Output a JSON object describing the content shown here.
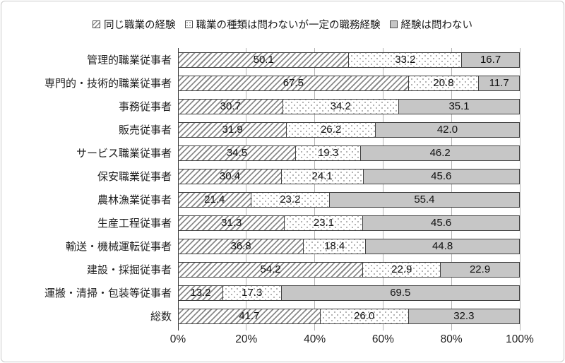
{
  "legend": {
    "items": [
      {
        "label": "同じ職業の経験",
        "pattern": "hatch"
      },
      {
        "label": "職業の種類は問わないが一定の職務経験",
        "pattern": "dots"
      },
      {
        "label": "経験は問わない",
        "pattern": "solid"
      }
    ]
  },
  "chart_data": {
    "type": "bar",
    "orientation": "horizontal",
    "stacked": true,
    "unit": "%",
    "xlim": [
      0,
      100
    ],
    "x_ticks": [
      "0%",
      "20%",
      "40%",
      "60%",
      "80%",
      "100%"
    ],
    "grid": "vertical",
    "legend_position": "top",
    "categories": [
      "管理的職業従事者",
      "専門的・技術的職業従事者",
      "事務従事者",
      "販売従事者",
      "サービス職業従事者",
      "保安職業従事者",
      "農林漁業従事者",
      "生産工程従事者",
      "輸送・機械運転従事者",
      "建設・採掘従事者",
      "運搬・清掃・包装等従事者",
      "総数"
    ],
    "series": [
      {
        "name": "同じ職業の経験",
        "pattern": "hatch",
        "values": [
          50.1,
          67.5,
          30.7,
          31.9,
          34.5,
          30.4,
          21.4,
          31.3,
          36.8,
          54.2,
          13.2,
          41.7
        ]
      },
      {
        "name": "職業の種類は問わないが一定の職務経験",
        "pattern": "dots",
        "values": [
          33.2,
          20.8,
          34.2,
          26.2,
          19.3,
          24.1,
          23.2,
          23.1,
          18.4,
          22.9,
          17.3,
          26.0
        ]
      },
      {
        "name": "経験は問わない",
        "pattern": "solid",
        "values": [
          16.7,
          11.7,
          35.1,
          42.0,
          46.2,
          45.6,
          55.4,
          45.6,
          44.8,
          22.9,
          69.5,
          32.3
        ]
      }
    ],
    "colors": {
      "hatch_line": "#8a8a8a",
      "dot": "#adadad",
      "solid_fill": "#c6c6c6",
      "segment_border": "#404040",
      "gridline": "#b3b3b3",
      "axis_line": "#333333",
      "frame_border": "#c9c9c9",
      "text": "#1a1a1a"
    }
  }
}
